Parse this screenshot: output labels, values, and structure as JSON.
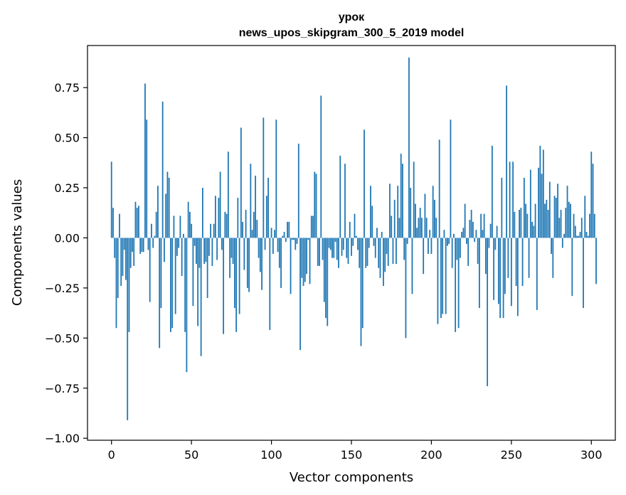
{
  "chart_data": {
    "type": "bar",
    "title_line1": "урок",
    "title_line2": "news_upos_skipgram_300_5_2019 model",
    "xlabel": "Vector components",
    "ylabel": "Components values",
    "xlim": [
      -15,
      315
    ],
    "ylim": [
      -1.01,
      0.96
    ],
    "xticks": [
      {
        "value": 0,
        "label": "0"
      },
      {
        "value": 50,
        "label": "50"
      },
      {
        "value": 100,
        "label": "100"
      },
      {
        "value": 150,
        "label": "150"
      },
      {
        "value": 200,
        "label": "200"
      },
      {
        "value": 250,
        "label": "250"
      },
      {
        "value": 300,
        "label": "300"
      }
    ],
    "yticks": [
      {
        "value": -1.0,
        "label": "−1.00"
      },
      {
        "value": -0.75,
        "label": "−0.75"
      },
      {
        "value": -0.5,
        "label": "−0.50"
      },
      {
        "value": -0.25,
        "label": "−0.25"
      },
      {
        "value": 0.0,
        "label": "0.00"
      },
      {
        "value": 0.25,
        "label": "0.25"
      },
      {
        "value": 0.5,
        "label": "0.50"
      },
      {
        "value": 0.75,
        "label": "0.75"
      }
    ],
    "bar_color": "#1f77b4",
    "grid": false,
    "values": [
      0.38,
      0.15,
      -0.1,
      -0.45,
      -0.3,
      0.12,
      -0.24,
      -0.19,
      -0.06,
      -0.21,
      -0.91,
      -0.47,
      -0.15,
      -0.07,
      -0.14,
      0.18,
      0.15,
      0.16,
      -0.08,
      -0.07,
      -0.07,
      0.77,
      0.59,
      -0.06,
      -0.32,
      0.07,
      -0.05,
      0.01,
      0.13,
      0.26,
      -0.55,
      -0.35,
      0.68,
      -0.12,
      0.22,
      0.33,
      0.3,
      -0.47,
      -0.45,
      0.11,
      -0.38,
      -0.09,
      -0.05,
      0.11,
      -0.19,
      0.02,
      -0.47,
      -0.67,
      0.18,
      0.13,
      0.07,
      -0.34,
      -0.04,
      -0.13,
      -0.44,
      -0.15,
      -0.59,
      0.25,
      -0.13,
      -0.12,
      -0.3,
      -0.09,
      0.07,
      -0.14,
      0.07,
      0.21,
      -0.11,
      0.2,
      0.33,
      -0.06,
      -0.48,
      0.13,
      0.12,
      0.43,
      -0.2,
      -0.1,
      -0.13,
      -0.35,
      -0.47,
      0.2,
      -0.38,
      0.55,
      0.08,
      -0.16,
      0.14,
      -0.25,
      -0.27,
      0.37,
      0.04,
      0.13,
      0.31,
      0.09,
      -0.1,
      -0.17,
      -0.26,
      0.6,
      -0.06,
      0.21,
      0.3,
      -0.46,
      0.05,
      -0.08,
      0.04,
      0.59,
      -0.07,
      -0.15,
      -0.25,
      0.01,
      0.03,
      -0.02,
      0.08,
      0.08,
      -0.28,
      -0.01,
      -0.01,
      -0.06,
      -0.03,
      0.47,
      -0.56,
      -0.2,
      -0.24,
      -0.22,
      -0.18,
      -0.01,
      -0.23,
      0.11,
      0.11,
      0.33,
      0.32,
      -0.14,
      -0.14,
      0.71,
      -0.11,
      -0.32,
      -0.4,
      -0.44,
      -0.05,
      -0.06,
      -0.1,
      -0.1,
      -0.02,
      -0.11,
      -0.15,
      0.41,
      -0.09,
      -0.06,
      0.37,
      -0.1,
      -0.13,
      0.08,
      -0.09,
      -0.04,
      0.12,
      0.01,
      -0.06,
      -0.15,
      -0.54,
      -0.45,
      0.54,
      -0.15,
      -0.14,
      -0.05,
      0.26,
      0.16,
      -0.04,
      -0.1,
      0.05,
      -0.15,
      -0.2,
      0.03,
      -0.24,
      -0.17,
      -0.08,
      -0.14,
      0.27,
      0.11,
      -0.13,
      0.19,
      -0.13,
      0.26,
      0.1,
      0.42,
      0.37,
      -0.11,
      -0.5,
      -0.03,
      0.9,
      0.25,
      -0.28,
      0.38,
      0.17,
      0.05,
      0.1,
      0.15,
      0.1,
      -0.18,
      0.22,
      0.1,
      -0.08,
      0.04,
      -0.08,
      0.26,
      0.19,
      0.1,
      -0.43,
      0.49,
      -0.4,
      -0.38,
      0.04,
      -0.38,
      -0.04,
      -0.03,
      0.59,
      -0.15,
      0.02,
      -0.47,
      -0.11,
      -0.45,
      -0.1,
      0.03,
      0.05,
      0.17,
      -0.03,
      -0.14,
      0.09,
      0.14,
      0.08,
      -0.02,
      0.04,
      -0.13,
      -0.35,
      0.12,
      0.04,
      0.12,
      -0.18,
      -0.74,
      -0.05,
      0.07,
      0.46,
      -0.31,
      -0.06,
      0.06,
      -0.33,
      -0.4,
      0.3,
      -0.4,
      -0.28,
      0.76,
      -0.2,
      0.38,
      -0.34,
      0.38,
      0.13,
      -0.24,
      -0.39,
      0.14,
      0.15,
      -0.24,
      0.3,
      0.17,
      0.12,
      -0.2,
      0.34,
      0.08,
      0.06,
      0.17,
      -0.36,
      0.35,
      0.46,
      0.32,
      0.44,
      0.17,
      0.19,
      0.14,
      0.28,
      -0.08,
      -0.2,
      0.21,
      0.2,
      0.27,
      0.1,
      0.14,
      -0.05,
      0.02,
      0.15,
      0.26,
      0.18,
      0.17,
      -0.29,
      0.12,
      0.06,
      0.01,
      0.01,
      0.03,
      0.1,
      -0.35,
      0.21,
      0.03,
      0.01,
      0.12,
      0.43,
      0.37,
      0.12,
      -0.23
    ]
  }
}
